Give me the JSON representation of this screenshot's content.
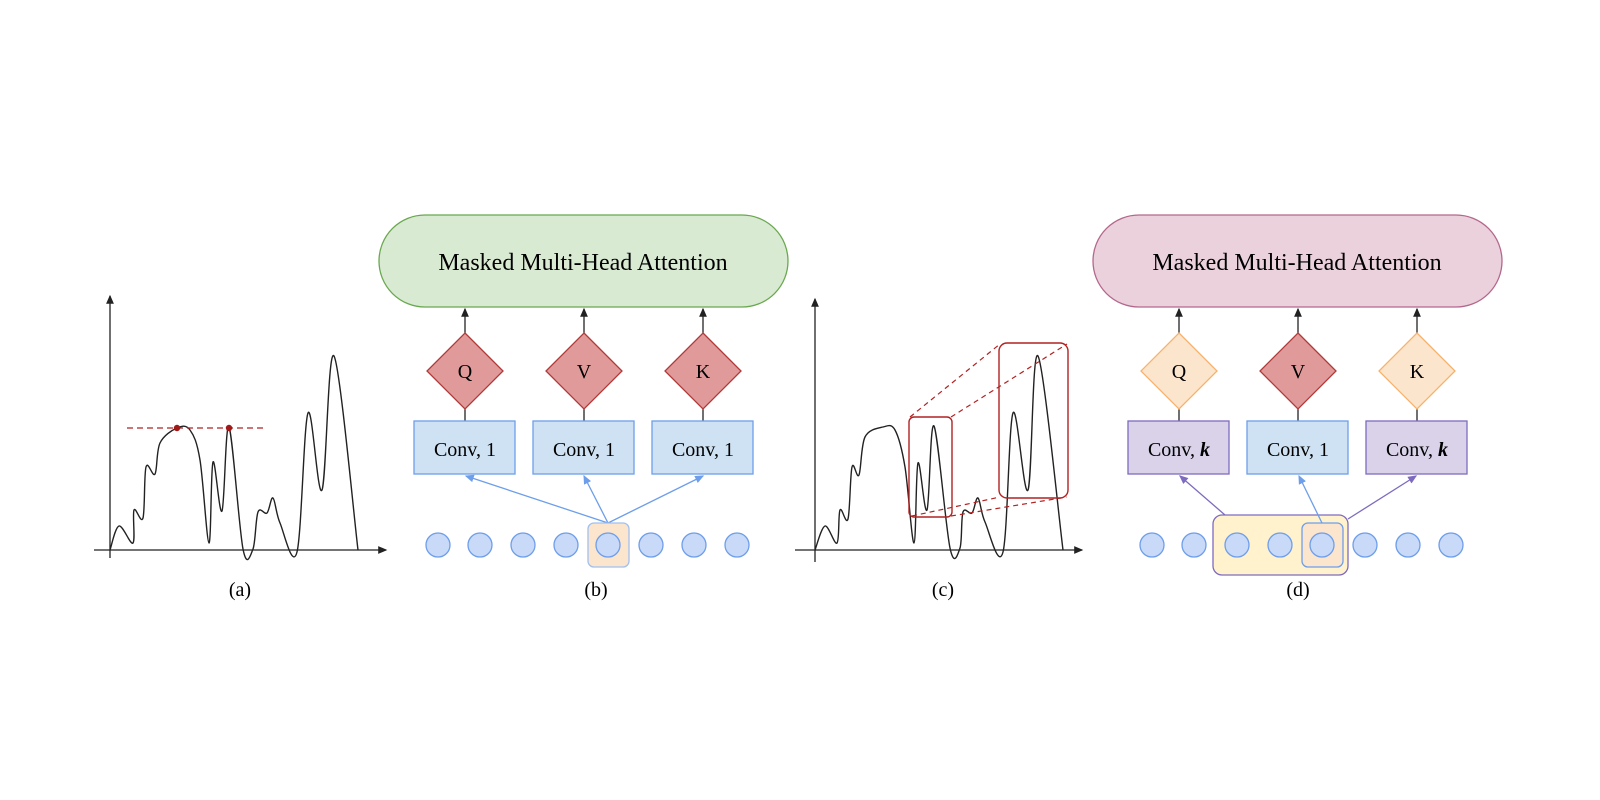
{
  "panels": {
    "a": {
      "caption": "(a)"
    },
    "b": {
      "caption": "(b)",
      "attention_label": "Masked Multi-Head Attention",
      "diamonds": [
        "Q",
        "V",
        "K"
      ],
      "conv_labels": [
        {
          "prefix": "Conv, ",
          "kernel": "1"
        },
        {
          "prefix": "Conv, ",
          "kernel": "1"
        },
        {
          "prefix": "Conv, ",
          "kernel": "1"
        }
      ]
    },
    "c": {
      "caption": "(c)"
    },
    "d": {
      "caption": "(d)",
      "attention_label": "Masked Multi-Head Attention",
      "diamonds": [
        "Q",
        "V",
        "K"
      ],
      "conv_labels": [
        {
          "prefix": "Conv, ",
          "kernel": "k"
        },
        {
          "prefix": "Conv, ",
          "kernel": "1"
        },
        {
          "prefix": "Conv, ",
          "kernel": "k"
        }
      ]
    }
  },
  "colors": {
    "green_fill": "#d9ead3",
    "green_stroke": "#6aa84f",
    "pink_fill": "#ead1dc",
    "pink_stroke": "#b4678c",
    "red_fill": "#e09a9a",
    "red_stroke": "#b03a3a",
    "orange_fill": "#fce5cd",
    "orange_stroke": "#f6b26b",
    "blue_fill": "#cfe2f3",
    "blue_stroke": "#6d9eeb",
    "purple_fill": "#d9d2e9",
    "purple_stroke": "#7e6bbf",
    "yellow_fill": "#fff2cc",
    "dashed_red": "#b22222"
  }
}
